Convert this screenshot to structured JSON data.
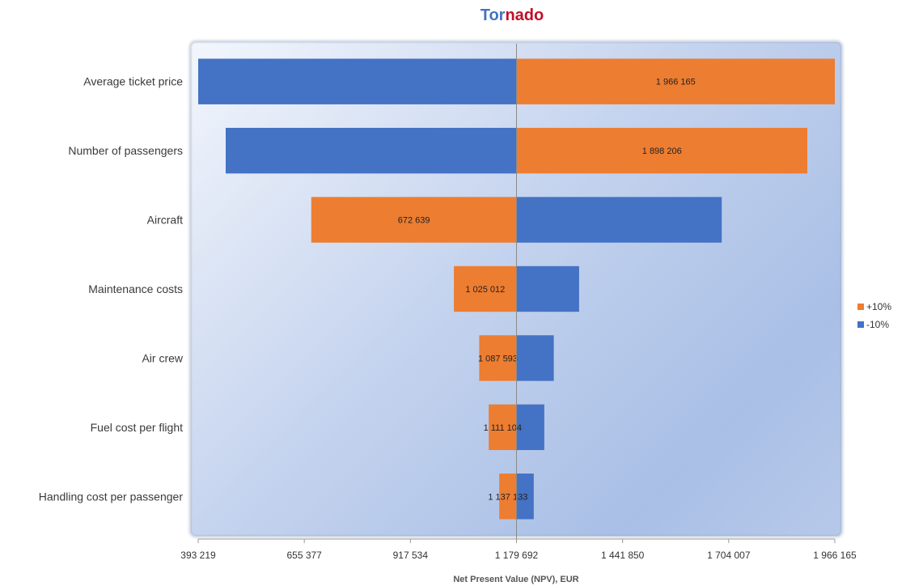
{
  "chart_data": {
    "type": "bar",
    "orientation": "horizontal",
    "variant": "tornado",
    "title_part1": "Tor",
    "title_part2": "nado",
    "xlabel": "Net Present Value (NPV),  EUR",
    "ylabel": "",
    "base_value": 1179692,
    "xlim": [
      393219,
      1966165
    ],
    "x_ticks": [
      393219,
      655377,
      917534,
      1179692,
      1441850,
      1704007,
      1966165
    ],
    "x_tick_labels": [
      "393 219",
      "655 377",
      "917 534",
      "1 179 692",
      "1 441 850",
      "1 704 007",
      "1 966 165"
    ],
    "categories": [
      "Average ticket price",
      "Number of passengers",
      "Aircraft",
      "Maintenance costs",
      "Air crew",
      "Fuel cost per flight",
      "Handling cost per passenger"
    ],
    "series": [
      {
        "name": "+10%",
        "color": "#ed7d31",
        "values": [
          1966165,
          1898206,
          672639,
          1025012,
          1087593,
          1111104,
          1137133
        ],
        "labels": [
          "1 966 165",
          "1 898 206",
          "672 639",
          "1 025 012",
          "1 087 593",
          "1 111 104",
          "1 137 133"
        ]
      },
      {
        "name": "-10%",
        "color": "#4472c4",
        "values": [
          393219,
          461178,
          1686745,
          1334372,
          1271791,
          1248280,
          1222251
        ]
      }
    ],
    "grid": false,
    "legend_position": "right"
  }
}
